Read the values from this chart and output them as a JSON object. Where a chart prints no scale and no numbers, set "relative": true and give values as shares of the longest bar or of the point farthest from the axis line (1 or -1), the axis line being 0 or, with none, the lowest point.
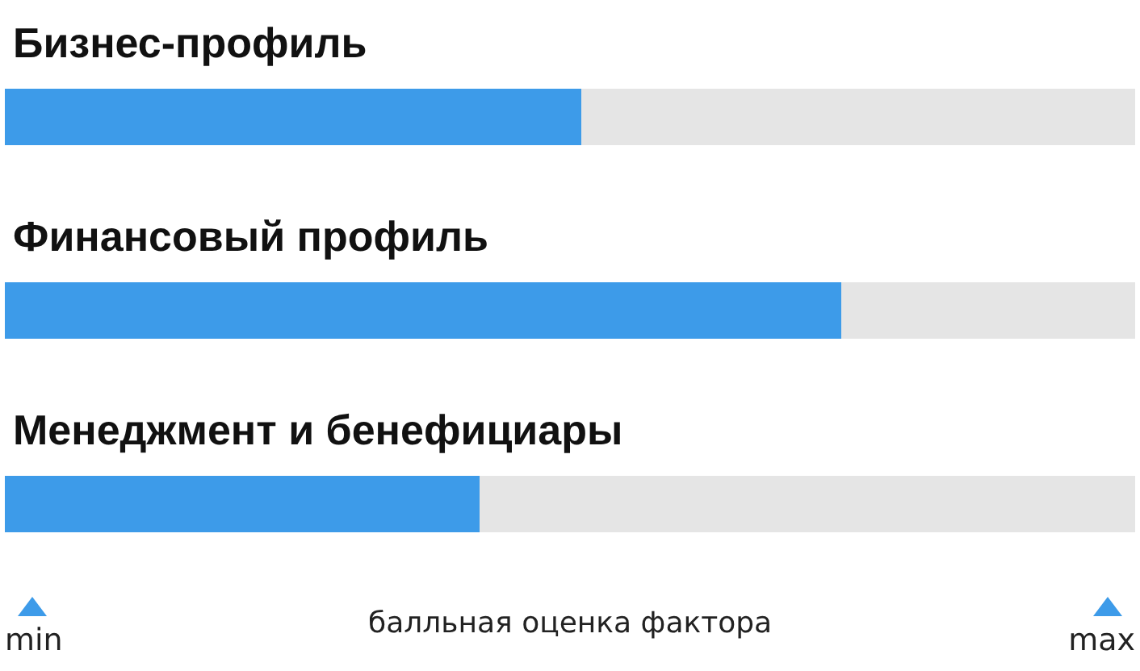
{
  "chart_data": {
    "type": "bar",
    "orientation": "horizontal",
    "stacked": true,
    "relative": true,
    "categories": [
      "Бизнес-профиль",
      "Финансовый профиль",
      "Менеджмент и бенефициары"
    ],
    "series": [
      {
        "color": "#3d9be9",
        "values": [
          0.51,
          0.74,
          0.42
        ]
      },
      {
        "color": "#e5e5e5",
        "values": [
          0.49,
          0.26,
          0.58
        ]
      }
    ],
    "xlabel": "балльная оценка фактора",
    "annotations": [
      "min",
      "max"
    ]
  }
}
